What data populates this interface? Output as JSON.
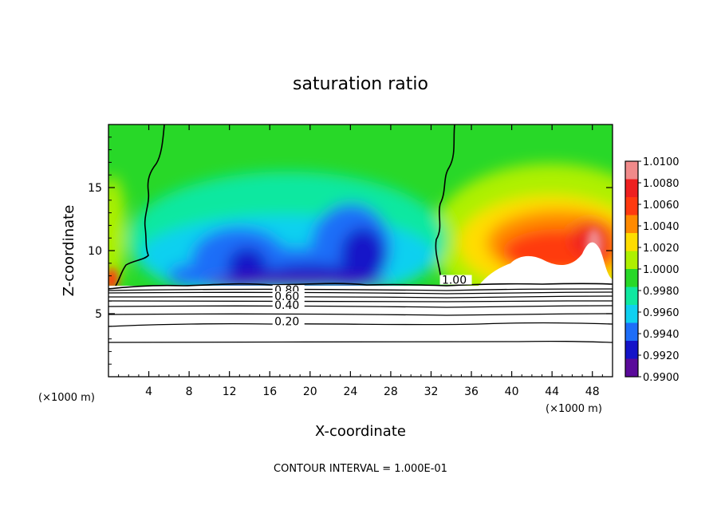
{
  "chart_data": {
    "type": "heatmap",
    "title": "saturation ratio",
    "xlabel": "X-coordinate",
    "ylabel": "Z-coordinate",
    "x_unit": "(×1000 m)",
    "x_unit_right": "(×1000 m)",
    "xlim": [
      0,
      50
    ],
    "ylim": [
      0,
      20
    ],
    "x_ticks": [
      4,
      8,
      12,
      16,
      20,
      24,
      28,
      32,
      36,
      40,
      44,
      48
    ],
    "y_ticks": [
      5,
      10,
      15
    ],
    "footer": "CONTOUR INTERVAL = 1.000E-01",
    "colorbar": {
      "labels": [
        "1.0100",
        "1.0080",
        "1.0060",
        "1.0040",
        "1.0020",
        "1.0000",
        "0.9980",
        "0.9960",
        "0.9940",
        "0.9920",
        "0.9900"
      ],
      "colors": [
        "#f08a8a",
        "#ee2020",
        "#ff3a10",
        "#ff8a00",
        "#ffdd00",
        "#aef000",
        "#28d828",
        "#10e8a0",
        "#10d0f0",
        "#1e6ef8",
        "#1414c8",
        "#5a0a9a"
      ]
    },
    "contour_labels": [
      {
        "text": "1.00",
        "x": 34.3,
        "z": 7.5
      },
      {
        "text": "0.80",
        "x": 17.7,
        "z": 6.7
      },
      {
        "text": "0.60",
        "x": 17.7,
        "z": 6.2
      },
      {
        "text": "0.40",
        "x": 17.7,
        "z": 5.5
      },
      {
        "text": "0.20",
        "x": 17.7,
        "z": 4.2
      }
    ],
    "contour_levels_z": [
      6.9,
      6.6,
      6.3,
      6.0,
      5.6,
      5.1,
      4.2,
      2.9
    ]
  }
}
